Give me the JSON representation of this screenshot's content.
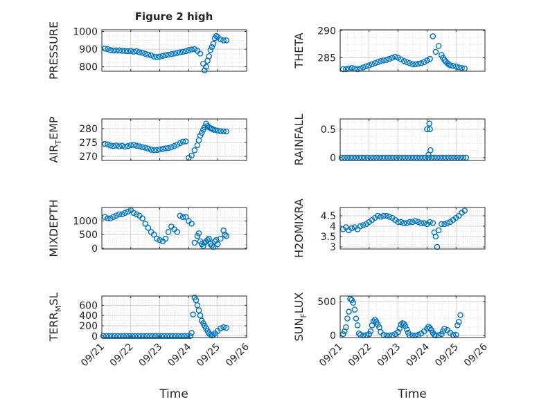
{
  "figure": {
    "title": "Figure 2 high",
    "xlabel": "Time",
    "xticks": [
      "09/21",
      "09/22",
      "09/23",
      "09/24",
      "09/25",
      "09/26"
    ],
    "marker_color": "#0072BD",
    "grid_color": "#d9d9d9",
    "axis_color": "#262626"
  },
  "chart_data": [
    {
      "type": "scatter",
      "ylabel": "PRESSURE",
      "xlim": [
        0,
        5
      ],
      "ylim": [
        775,
        1010
      ],
      "yticks": [
        {
          "v": 800,
          "t": "800"
        },
        {
          "v": 900,
          "t": "900"
        },
        {
          "v": 1000,
          "t": "1000"
        }
      ],
      "show_xticklabels": false,
      "series": [
        {
          "name": "PRESSURE",
          "x": [
            0.1,
            0.2,
            0.3,
            0.4,
            0.5,
            0.6,
            0.7,
            0.8,
            0.9,
            1.0,
            1.1,
            1.2,
            1.3,
            1.4,
            1.5,
            1.6,
            1.7,
            1.8,
            1.9,
            2.0,
            2.1,
            2.2,
            2.3,
            2.4,
            2.5,
            2.6,
            2.7,
            2.8,
            2.9,
            3.0,
            3.1,
            3.2,
            3.3,
            3.4,
            3.5,
            3.55,
            3.6,
            3.65,
            3.7,
            3.75,
            3.8,
            3.85,
            3.9,
            3.95,
            4.0,
            4.1,
            4.2,
            4.3
          ],
          "y": [
            903,
            900,
            895,
            893,
            893,
            893,
            891,
            890,
            888,
            890,
            886,
            888,
            882,
            880,
            874,
            869,
            865,
            858,
            855,
            858,
            862,
            866,
            869,
            872,
            875,
            879,
            882,
            885,
            889,
            895,
            898,
            900,
            890,
            875,
            818,
            780,
            800,
            835,
            860,
            895,
            912,
            930,
            962,
            975,
            968,
            955,
            950,
            950
          ]
        }
      ]
    },
    {
      "type": "scatter",
      "ylabel": "THETA",
      "xlim": [
        0,
        5
      ],
      "ylim": [
        282.5,
        290.2
      ],
      "yticks": [
        {
          "v": 285,
          "t": "285"
        },
        {
          "v": 290,
          "t": "290"
        }
      ],
      "show_xticklabels": false,
      "series": [
        {
          "name": "THETA",
          "x": [
            0.1,
            0.2,
            0.3,
            0.4,
            0.5,
            0.6,
            0.7,
            0.8,
            0.9,
            1.0,
            1.1,
            1.2,
            1.3,
            1.4,
            1.5,
            1.6,
            1.7,
            1.8,
            1.9,
            2.0,
            2.1,
            2.2,
            2.3,
            2.4,
            2.5,
            2.6,
            2.7,
            2.8,
            2.9,
            3.0,
            3.1,
            3.2,
            3.3,
            3.4,
            3.5,
            3.55,
            3.6,
            3.65,
            3.7,
            3.75,
            3.8,
            3.9,
            4.0,
            4.1,
            4.2,
            4.3
          ],
          "y": [
            282.9,
            282.9,
            283.0,
            283.1,
            283.0,
            282.9,
            283.0,
            283.2,
            283.4,
            283.6,
            283.8,
            284.0,
            284.2,
            284.4,
            284.5,
            284.6,
            284.8,
            285.0,
            285.2,
            285.0,
            284.7,
            284.4,
            284.2,
            284.0,
            283.8,
            283.8,
            283.9,
            284.0,
            284.2,
            284.5,
            284.8,
            289.0,
            286.1,
            287.2,
            285.5,
            285.0,
            284.6,
            284.3,
            284.0,
            283.8,
            283.6,
            283.5,
            283.4,
            283.2,
            283.1,
            283.0
          ]
        }
      ]
    },
    {
      "type": "scatter",
      "ylabel": "AIR_TEMP",
      "xlim": [
        0,
        5
      ],
      "ylim": [
        268.5,
        283.5
      ],
      "yticks": [
        {
          "v": 270,
          "t": "270"
        },
        {
          "v": 275,
          "t": "275"
        },
        {
          "v": 280,
          "t": "280"
        }
      ],
      "show_xticklabels": false,
      "series": [
        {
          "name": "AIR_TEMP",
          "x": [
            0.1,
            0.2,
            0.3,
            0.4,
            0.5,
            0.6,
            0.7,
            0.8,
            0.9,
            1.0,
            1.1,
            1.2,
            1.3,
            1.4,
            1.5,
            1.6,
            1.7,
            1.8,
            1.9,
            2.0,
            2.1,
            2.2,
            2.3,
            2.4,
            2.5,
            2.6,
            2.7,
            2.8,
            2.9,
            3.0,
            3.1,
            3.2,
            3.3,
            3.35,
            3.4,
            3.45,
            3.5,
            3.55,
            3.6,
            3.65,
            3.7,
            3.75,
            3.8,
            3.85,
            3.9,
            4.0,
            4.1,
            4.2,
            4.3
          ],
          "y": [
            274.5,
            274.3,
            273.9,
            273.7,
            273.9,
            273.6,
            273.8,
            273.5,
            273.7,
            274.0,
            274.1,
            273.8,
            273.6,
            273.3,
            273.1,
            272.8,
            272.4,
            272.2,
            272.3,
            272.5,
            272.7,
            272.9,
            273.0,
            273.3,
            273.7,
            274.2,
            274.8,
            275.3,
            275.4,
            269.5,
            270.3,
            272.2,
            274.0,
            275.8,
            277.5,
            278.5,
            279.6,
            280.5,
            281.8,
            281.0,
            280.5,
            280.2,
            280.0,
            279.7,
            279.5,
            279.3,
            279.1,
            279.0,
            279.0
          ]
        }
      ]
    },
    {
      "type": "scatter",
      "ylabel": "RAINFALL",
      "xlim": [
        0,
        5
      ],
      "ylim": [
        -0.05,
        0.68
      ],
      "yticks": [
        {
          "v": 0,
          "t": "0"
        },
        {
          "v": 0.5,
          "t": "0.5"
        }
      ],
      "show_xticklabels": false,
      "series": [
        {
          "name": "RAINFALL",
          "x": [
            0.05,
            0.15,
            0.25,
            0.35,
            0.45,
            0.55,
            0.65,
            0.75,
            0.85,
            0.95,
            1.05,
            1.15,
            1.25,
            1.35,
            1.45,
            1.55,
            1.65,
            1.75,
            1.85,
            1.95,
            2.05,
            2.15,
            2.25,
            2.35,
            2.45,
            2.55,
            2.65,
            2.75,
            2.85,
            2.95,
            3.05,
            3.15,
            3.25,
            3.35,
            3.45,
            3.55,
            3.65,
            3.75,
            3.85,
            3.95,
            4.05,
            4.15,
            4.25,
            4.35,
            3.0,
            3.08,
            3.1,
            3.12,
            3.05
          ],
          "y": [
            0,
            0,
            0,
            0,
            0,
            0,
            0,
            0,
            0,
            0,
            0,
            0,
            0,
            0,
            0,
            0,
            0,
            0,
            0,
            0,
            0,
            0,
            0,
            0,
            0,
            0,
            0,
            0,
            0,
            0,
            0,
            0,
            0,
            0,
            0,
            0,
            0,
            0,
            0,
            0,
            0,
            0,
            0,
            0,
            0.5,
            0.6,
            0.5,
            0.13,
            0.05
          ]
        }
      ]
    },
    {
      "type": "scatter",
      "ylabel": "MIXDEPTH",
      "xlim": [
        0,
        5
      ],
      "ylim": [
        -30,
        1500
      ],
      "yticks": [
        {
          "v": 0,
          "t": "0"
        },
        {
          "v": 500,
          "t": "500"
        },
        {
          "v": 1000,
          "t": "1000"
        }
      ],
      "show_xticklabels": false,
      "series": [
        {
          "name": "MIXDEPTH",
          "x": [
            0.1,
            0.2,
            0.3,
            0.4,
            0.5,
            0.6,
            0.7,
            0.8,
            0.9,
            1.0,
            1.1,
            1.2,
            1.3,
            1.4,
            1.5,
            1.6,
            1.7,
            1.8,
            1.9,
            2.0,
            2.1,
            2.2,
            2.3,
            2.4,
            2.5,
            2.6,
            2.7,
            2.8,
            2.9,
            3.0,
            3.1,
            3.2,
            3.3,
            3.35,
            3.4,
            3.45,
            3.5,
            3.55,
            3.6,
            3.65,
            3.7,
            3.75,
            3.8,
            3.85,
            3.9,
            3.95,
            4.0,
            4.1,
            4.2,
            4.25,
            4.3
          ],
          "y": [
            1150,
            1100,
            1100,
            1150,
            1200,
            1250,
            1250,
            1300,
            1350,
            1400,
            1300,
            1250,
            1200,
            1100,
            900,
            750,
            600,
            500,
            350,
            300,
            250,
            350,
            600,
            800,
            700,
            600,
            1200,
            1150,
            1150,
            1000,
            900,
            200,
            450,
            550,
            250,
            150,
            80,
            200,
            250,
            300,
            350,
            150,
            100,
            50,
            250,
            300,
            150,
            350,
            650,
            500,
            450
          ]
        }
      ]
    },
    {
      "type": "scatter",
      "ylabel": "H2OMIXRA",
      "xlim": [
        0,
        5
      ],
      "ylim": [
        2.9,
        4.9
      ],
      "yticks": [
        {
          "v": 3,
          "t": "3"
        },
        {
          "v": 3.5,
          "t": "3.5"
        },
        {
          "v": 4,
          "t": "4"
        },
        {
          "v": 4.5,
          "t": "4.5"
        }
      ],
      "show_xticklabels": false,
      "series": [
        {
          "name": "H2OMIXRA",
          "x": [
            0.1,
            0.2,
            0.3,
            0.4,
            0.5,
            0.6,
            0.7,
            0.8,
            0.9,
            1.0,
            1.1,
            1.2,
            1.3,
            1.4,
            1.5,
            1.6,
            1.7,
            1.8,
            1.9,
            2.0,
            2.1,
            2.2,
            2.3,
            2.4,
            2.5,
            2.6,
            2.7,
            2.8,
            2.9,
            3.0,
            3.1,
            3.2,
            3.25,
            3.3,
            3.35,
            3.4,
            3.5,
            3.6,
            3.7,
            3.8,
            3.9,
            4.0,
            4.1,
            4.2,
            4.3
          ],
          "y": [
            3.85,
            3.95,
            3.8,
            3.9,
            3.95,
            3.85,
            4.0,
            4.05,
            4.1,
            4.2,
            4.3,
            4.4,
            4.5,
            4.45,
            4.5,
            4.5,
            4.45,
            4.4,
            4.3,
            4.2,
            4.2,
            4.15,
            4.15,
            4.2,
            4.2,
            4.25,
            4.2,
            4.15,
            4.15,
            4.1,
            4.2,
            4.15,
            3.7,
            3.5,
            3.0,
            3.8,
            4.1,
            4.1,
            4.15,
            4.2,
            4.3,
            4.4,
            4.5,
            4.65,
            4.75
          ]
        }
      ]
    },
    {
      "type": "scatter",
      "ylabel": "TERR_MSL",
      "xlim": [
        0,
        5
      ],
      "ylim": [
        -30,
        780
      ],
      "yticks": [
        {
          "v": 0,
          "t": "0"
        },
        {
          "v": 200,
          "t": "200"
        },
        {
          "v": 400,
          "t": "400"
        },
        {
          "v": 600,
          "t": "600"
        }
      ],
      "show_xticklabels": true,
      "series": [
        {
          "name": "TERR_MSL",
          "x": [
            0.05,
            0.15,
            0.25,
            0.35,
            0.45,
            0.55,
            0.65,
            0.75,
            0.85,
            0.95,
            1.05,
            1.15,
            1.25,
            1.35,
            1.45,
            1.55,
            1.65,
            1.75,
            1.85,
            1.95,
            2.05,
            2.15,
            2.25,
            2.35,
            2.45,
            2.55,
            2.65,
            2.75,
            2.85,
            2.95,
            3.05,
            3.1,
            3.15,
            3.2,
            3.25,
            3.3,
            3.35,
            3.4,
            3.45,
            3.5,
            3.55,
            3.6,
            3.65,
            3.7,
            3.75,
            3.8,
            3.85,
            3.9,
            4.0,
            4.1,
            4.2,
            4.3
          ],
          "y": [
            0,
            0,
            0,
            0,
            0,
            0,
            0,
            0,
            0,
            0,
            0,
            0,
            0,
            0,
            0,
            0,
            0,
            0,
            0,
            0,
            0,
            0,
            0,
            0,
            0,
            0,
            0,
            0,
            0,
            0,
            0,
            60,
            420,
            750,
            700,
            600,
            500,
            400,
            300,
            250,
            200,
            150,
            100,
            50,
            30,
            10,
            20,
            50,
            100,
            150,
            170,
            160
          ]
        }
      ]
    },
    {
      "type": "scatter",
      "ylabel": "SUN_FLUX",
      "xlim": [
        0,
        5
      ],
      "ylim": [
        -30,
        580
      ],
      "yticks": [
        {
          "v": 0,
          "t": "0"
        },
        {
          "v": 500,
          "t": "500"
        }
      ],
      "show_xticklabels": true,
      "series": [
        {
          "name": "SUN_FLUX",
          "x": [
            0.1,
            0.15,
            0.2,
            0.25,
            0.3,
            0.35,
            0.4,
            0.45,
            0.5,
            0.55,
            0.6,
            0.65,
            0.7,
            0.8,
            0.9,
            1.0,
            1.05,
            1.1,
            1.15,
            1.2,
            1.25,
            1.3,
            1.35,
            1.4,
            1.5,
            1.6,
            1.7,
            1.8,
            1.9,
            2.0,
            2.05,
            2.1,
            2.15,
            2.2,
            2.25,
            2.3,
            2.35,
            2.4,
            2.5,
            2.6,
            2.7,
            2.8,
            2.9,
            3.0,
            3.05,
            3.1,
            3.15,
            3.2,
            3.25,
            3.3,
            3.4,
            3.5,
            3.55,
            3.6,
            3.7,
            3.8,
            3.9,
            4.0,
            4.05,
            4.1,
            4.15
          ],
          "y": [
            20,
            60,
            120,
            250,
            350,
            540,
            520,
            480,
            380,
            250,
            150,
            30,
            10,
            0,
            5,
            20,
            60,
            150,
            210,
            230,
            200,
            160,
            120,
            50,
            10,
            0,
            0,
            5,
            20,
            50,
            100,
            160,
            180,
            170,
            140,
            90,
            40,
            5,
            0,
            0,
            10,
            30,
            60,
            100,
            130,
            110,
            80,
            40,
            10,
            0,
            5,
            20,
            60,
            100,
            80,
            40,
            10,
            10,
            150,
            200,
            300
          ]
        }
      ]
    }
  ]
}
